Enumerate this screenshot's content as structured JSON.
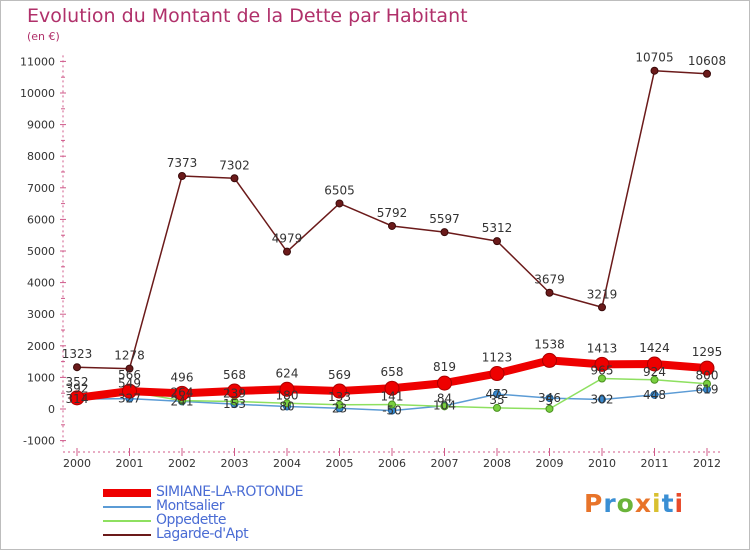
{
  "header": {
    "title": "Evolution du Montant de la Dette par Habitant",
    "unit": "(en €)"
  },
  "logo": {
    "text": "Proxiti",
    "colors": [
      "#e8742a",
      "#3a8fd4",
      "#6ab43a",
      "#e8742a",
      "#d8c030",
      "#3a8fd4",
      "#e84a2a"
    ]
  },
  "chart_data": {
    "type": "line",
    "title": "Evolution du Montant de la Dette par Habitant",
    "subtitle": "(en €)",
    "x": [
      "2000",
      "2001",
      "2002",
      "2003",
      "2004",
      "2005",
      "2006",
      "2007",
      "2008",
      "2009",
      "2010",
      "2011",
      "2012"
    ],
    "ylim": [
      -1000,
      11000
    ],
    "yticks": [
      "-1000",
      "0",
      "1000",
      "2000",
      "3000",
      "4000",
      "5000",
      "6000",
      "7000",
      "8000",
      "9000",
      "10000",
      "11000"
    ],
    "grid": false,
    "legend_position": "bottom-left",
    "series": [
      {
        "name": "Lagarde-d'Apt",
        "color": "#6b1a1a",
        "values": [
          1323,
          1278,
          7373,
          7302,
          4979,
          6505,
          5792,
          5597,
          5312,
          3679,
          3219,
          10705,
          10608
        ],
        "labels": [
          "1323",
          "1278",
          "7373",
          "7302",
          "4979",
          "6505",
          "5792",
          "5597",
          "5312",
          "3679",
          "3219",
          "10705",
          "10608"
        ]
      },
      {
        "name": "Montsalier",
        "color": "#5b9bd5",
        "values": [
          314,
          327,
          241,
          153,
          80,
          23,
          -50,
          104,
          472,
          346,
          302,
          448,
          619
        ],
        "labels": [
          "314",
          "327",
          "241",
          "153",
          "80",
          "23",
          "-50",
          "104",
          "472",
          "346",
          "302",
          "448",
          "619"
        ]
      },
      {
        "name": "Oppedette",
        "color": "#8ee060",
        "values": [
          392,
          549,
          264,
          239,
          180,
          133,
          141,
          84,
          35,
          5,
          965,
          924,
          800
        ],
        "labels": [
          "392",
          "549",
          "264",
          "239",
          "180",
          "133",
          "141",
          "84",
          "35",
          "5",
          "965",
          "924",
          "800"
        ]
      },
      {
        "name": "SIMIANE-LA-ROTONDE",
        "color": "#ee0000",
        "values": [
          352,
          566,
          496,
          568,
          624,
          569,
          658,
          819,
          1123,
          1538,
          1413,
          1424,
          1295
        ],
        "labels": [
          "352",
          "566",
          "496",
          "568",
          "624",
          "569",
          "658",
          "819",
          "1123",
          "1538",
          "1413",
          "1424",
          "1295"
        ]
      }
    ],
    "legend": [
      "SIMIANE-LA-ROTONDE",
      "Montsalier",
      "Oppedette",
      "Lagarde-d'Apt"
    ]
  }
}
